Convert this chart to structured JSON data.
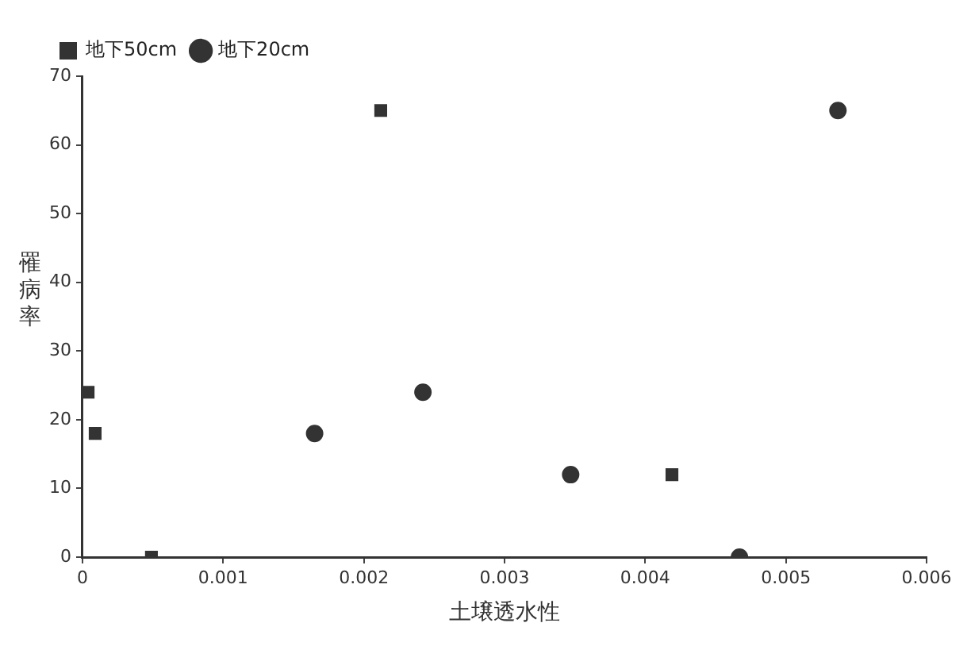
{
  "chart_data": {
    "type": "scatter",
    "xlabel": "土壌透水性",
    "ylabel": "罹病率",
    "xlim": [
      0,
      0.006
    ],
    "xticks": [
      0,
      0.001,
      0.002,
      0.003,
      0.004,
      0.005,
      0.006
    ],
    "ylim": [
      0,
      70
    ],
    "yticks": [
      0,
      10,
      20,
      30,
      40,
      50,
      60,
      70
    ],
    "grid": false,
    "legend": "top left",
    "series": [
      {
        "name": "地下50cm",
        "color": "#333333",
        "marker": "square",
        "x": [
          4e-05,
          9e-05,
          0.00049,
          0.00212,
          0.00419
        ],
        "values": [
          24,
          18,
          0,
          65,
          12
        ]
      },
      {
        "name": "地下20cm",
        "color": "#333333",
        "marker": "circle",
        "x": [
          0.00165,
          0.00242,
          0.00347,
          0.00467,
          0.00537
        ],
        "values": [
          18,
          24,
          12,
          0,
          65
        ]
      }
    ]
  }
}
